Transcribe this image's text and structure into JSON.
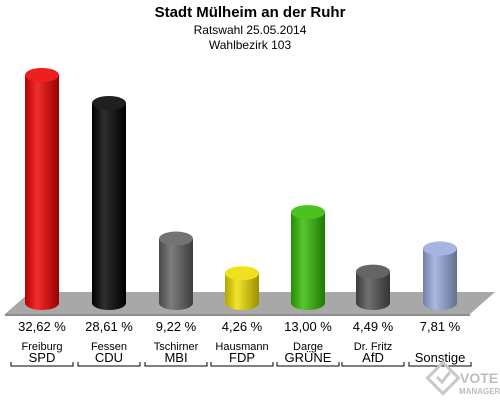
{
  "header": {
    "title": "Stadt Mülheim an der Ruhr",
    "subtitle": "Ratswahl 25.05.2014",
    "district": "Wahlbezirk 103"
  },
  "chart_data": {
    "type": "bar",
    "categories": [
      {
        "candidate": "Freiburg",
        "party": "SPD"
      },
      {
        "candidate": "Fessen",
        "party": "CDU"
      },
      {
        "candidate": "Tschirner",
        "party": "MBI"
      },
      {
        "candidate": "Hausmann",
        "party": "FDP"
      },
      {
        "candidate": "Darge",
        "party": "GRÜNE"
      },
      {
        "candidate": "Dr. Fritz",
        "party": "AfD"
      },
      {
        "candidate": "",
        "party": "Sonstige"
      }
    ],
    "values": [
      32.62,
      28.61,
      9.22,
      4.26,
      13.0,
      4.49,
      7.81
    ],
    "value_labels": [
      "32,62 %",
      "28,61 %",
      "9,22 %",
      "4,26 %",
      "13,00 %",
      "4,49 %",
      "7,81 %"
    ],
    "colors": [
      "#ee0000",
      "#000000",
      "#606060",
      "#eedd00",
      "#33bb00",
      "#505050",
      "#99aadd"
    ],
    "ylim": [
      0,
      32.62
    ],
    "style": "3d-cylinder"
  },
  "logo": {
    "line1": "VOTE",
    "line2": "MANAGER"
  }
}
